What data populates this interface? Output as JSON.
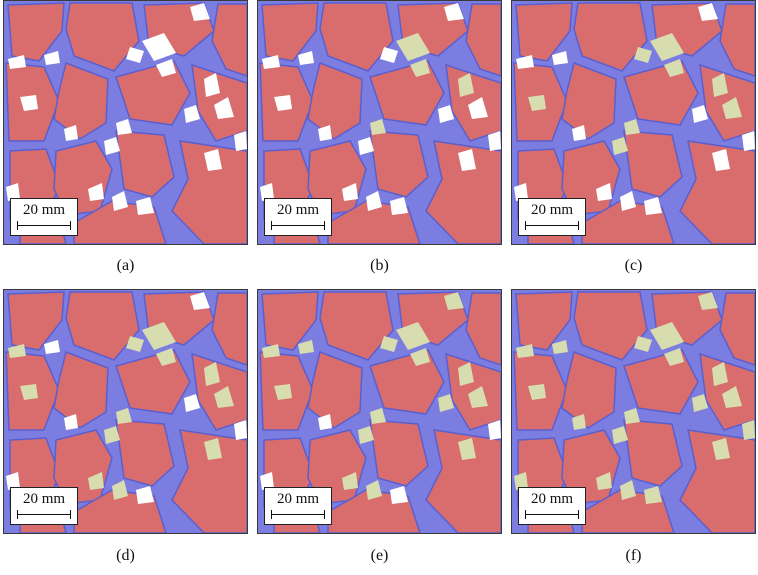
{
  "panels": [
    {
      "caption": "(a)",
      "scale_label": "20 mm",
      "yellow_level": 0
    },
    {
      "caption": "(b)",
      "scale_label": "20 mm",
      "yellow_level": 1
    },
    {
      "caption": "(c)",
      "scale_label": "20 mm",
      "yellow_level": 2
    },
    {
      "caption": "(d)",
      "scale_label": "20 mm",
      "yellow_level": 3
    },
    {
      "caption": "(e)",
      "scale_label": "20 mm",
      "yellow_level": 4
    },
    {
      "caption": "(f)",
      "scale_label": "20 mm",
      "yellow_level": 5
    }
  ],
  "colors": {
    "aggregate": "#d96c6c",
    "mortar": "#7b7ee0",
    "void": "#ffffff",
    "filled": "#d8ddb0",
    "outline": "#5a5fd0"
  }
}
